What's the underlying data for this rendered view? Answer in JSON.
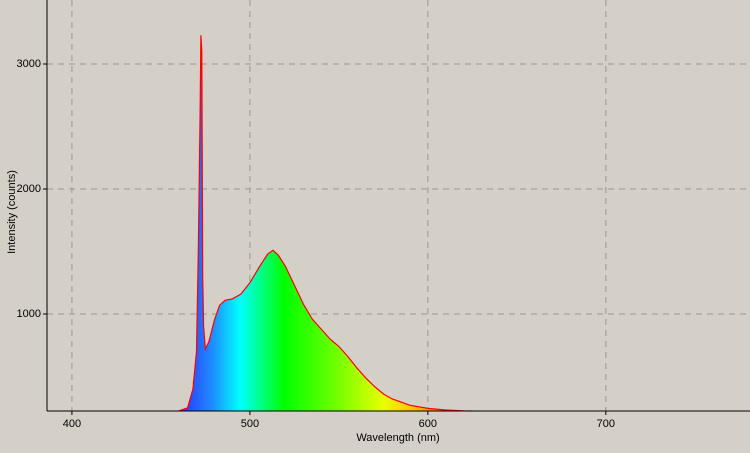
{
  "chart_data": {
    "type": "area",
    "xlabel": "Wavelength (nm)",
    "ylabel": "Intensity (counts)",
    "x": [
      460,
      465,
      468,
      470,
      471,
      472,
      472.5,
      473,
      473.5,
      474,
      475,
      477,
      480,
      483,
      486,
      490,
      495,
      500,
      505,
      510,
      513,
      516,
      520,
      525,
      530,
      535,
      540,
      545,
      550,
      555,
      560,
      565,
      570,
      575,
      580,
      590,
      600,
      610,
      620,
      625
    ],
    "values": [
      224,
      250,
      400,
      700,
      1500,
      2600,
      3230,
      3100,
      1300,
      900,
      720,
      780,
      950,
      1070,
      1110,
      1120,
      1160,
      1250,
      1370,
      1480,
      1510,
      1470,
      1380,
      1230,
      1080,
      960,
      880,
      800,
      740,
      660,
      570,
      490,
      420,
      360,
      320,
      270,
      245,
      232,
      226,
      224
    ],
    "color": "#ff0000",
    "xlim": [
      386,
      781
    ],
    "ylim": [
      224,
      3512
    ],
    "xticks": [
      400,
      500,
      600,
      700
    ],
    "yticks": [
      1000,
      2000,
      3000
    ],
    "grid": true
  }
}
